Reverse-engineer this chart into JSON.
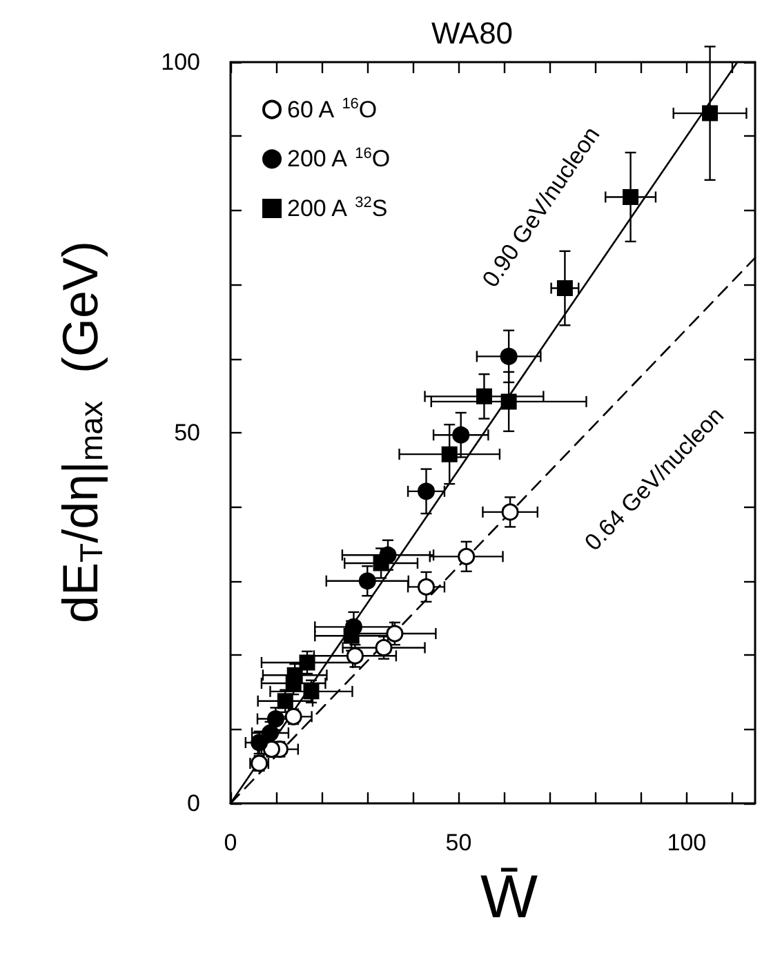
{
  "chart_data": {
    "type": "scatter",
    "title": "WA80",
    "xlabel": "W̄",
    "ylabel": "dE$_{T}$/dη|$_{max}$  (GeV)",
    "xlim": [
      0,
      115
    ],
    "ylim": [
      0,
      100
    ],
    "xticks": [
      0,
      {
        "value": 10,
        "label": null
      },
      {
        "value": 20,
        "label": null
      },
      {
        "value": 30,
        "label": null
      },
      {
        "value": 40,
        "label": null
      },
      50,
      {
        "value": 60,
        "label": null
      },
      {
        "value": 70,
        "label": null
      },
      {
        "value": 80,
        "label": null
      },
      {
        "value": 90,
        "label": null
      },
      100,
      {
        "value": 110,
        "label": null
      }
    ],
    "yticks": [
      0,
      {
        "value": 10,
        "label": null
      },
      {
        "value": 20,
        "label": null
      },
      {
        "value": 30,
        "label": null
      },
      {
        "value": 40,
        "label": null
      },
      50,
      {
        "value": 60,
        "label": null
      },
      {
        "value": 70,
        "label": null
      },
      {
        "value": 80,
        "label": null
      },
      {
        "value": 90,
        "label": null
      },
      100
    ],
    "grid": false,
    "legend": "top left",
    "series": [
      {
        "name": "60 A $^{16}$O",
        "color": "#ffffff",
        "marker": "circle",
        "x": [
          61.3,
          51.7,
          42.9,
          36.0,
          33.6,
          27.3,
          13.8,
          10.8,
          9.0,
          6.3
        ],
        "values": [
          39.3,
          33.3,
          29.2,
          22.9,
          21.0,
          19.9,
          11.7,
          7.3,
          7.3,
          5.4
        ],
        "xerrors": [
          6,
          8,
          4,
          9,
          9,
          9,
          4,
          4,
          3,
          2
        ],
        "errors": [
          2,
          2,
          2,
          1.5,
          1.5,
          1.5,
          1,
          1,
          1,
          1
        ]
      },
      {
        "name": "200 A $^{16}$O",
        "color": "#000000",
        "marker": "circle",
        "x": [
          61.0,
          50.5,
          42.9,
          34.5,
          30.0,
          27.0,
          9.9,
          8.7,
          6.3
        ],
        "values": [
          60.3,
          49.7,
          42.1,
          33.5,
          30.0,
          23.8,
          11.4,
          9.5,
          8.2
        ],
        "xerrors": [
          7,
          6,
          4,
          10,
          9,
          8.5,
          4,
          4,
          3
        ],
        "errors": [
          3.5,
          3,
          3,
          2,
          2,
          2,
          1.5,
          1.5,
          1.5
        ]
      },
      {
        "name": "200 A $^{32}$S",
        "color": "#000000",
        "marker": "square",
        "x": [
          105.1,
          87.7,
          73.3,
          55.6,
          61.0,
          48.0,
          33.0,
          26.5,
          16.8,
          14.1,
          13.8,
          17.7,
          12.0
        ],
        "values": [
          93.1,
          81.8,
          69.5,
          54.9,
          54.2,
          47.1,
          32.4,
          22.6,
          19.0,
          17.3,
          16.2,
          15.1,
          13.8
        ],
        "xerrors": [
          8,
          5.5,
          3,
          13,
          17,
          11,
          8,
          8,
          10,
          7,
          7,
          9,
          6
        ],
        "errors": [
          9,
          6,
          5,
          3,
          4,
          4,
          2,
          2,
          1.5,
          1.5,
          1.5,
          1.5,
          1.5
        ]
      },
      {
        "type": "line",
        "color": "#000000",
        "marker": "none",
        "line_style": "solid",
        "x": [
          0,
          111
        ],
        "values": [
          0,
          99.9
        ]
      },
      {
        "type": "line",
        "color": "#000000",
        "marker": "none",
        "line_style": "dashed",
        "x": [
          0,
          115
        ],
        "values": [
          0,
          73.6
        ]
      }
    ],
    "annotations": [
      "0.90 GeV/nucleon",
      "0.64 GeV/nucleon"
    ]
  }
}
